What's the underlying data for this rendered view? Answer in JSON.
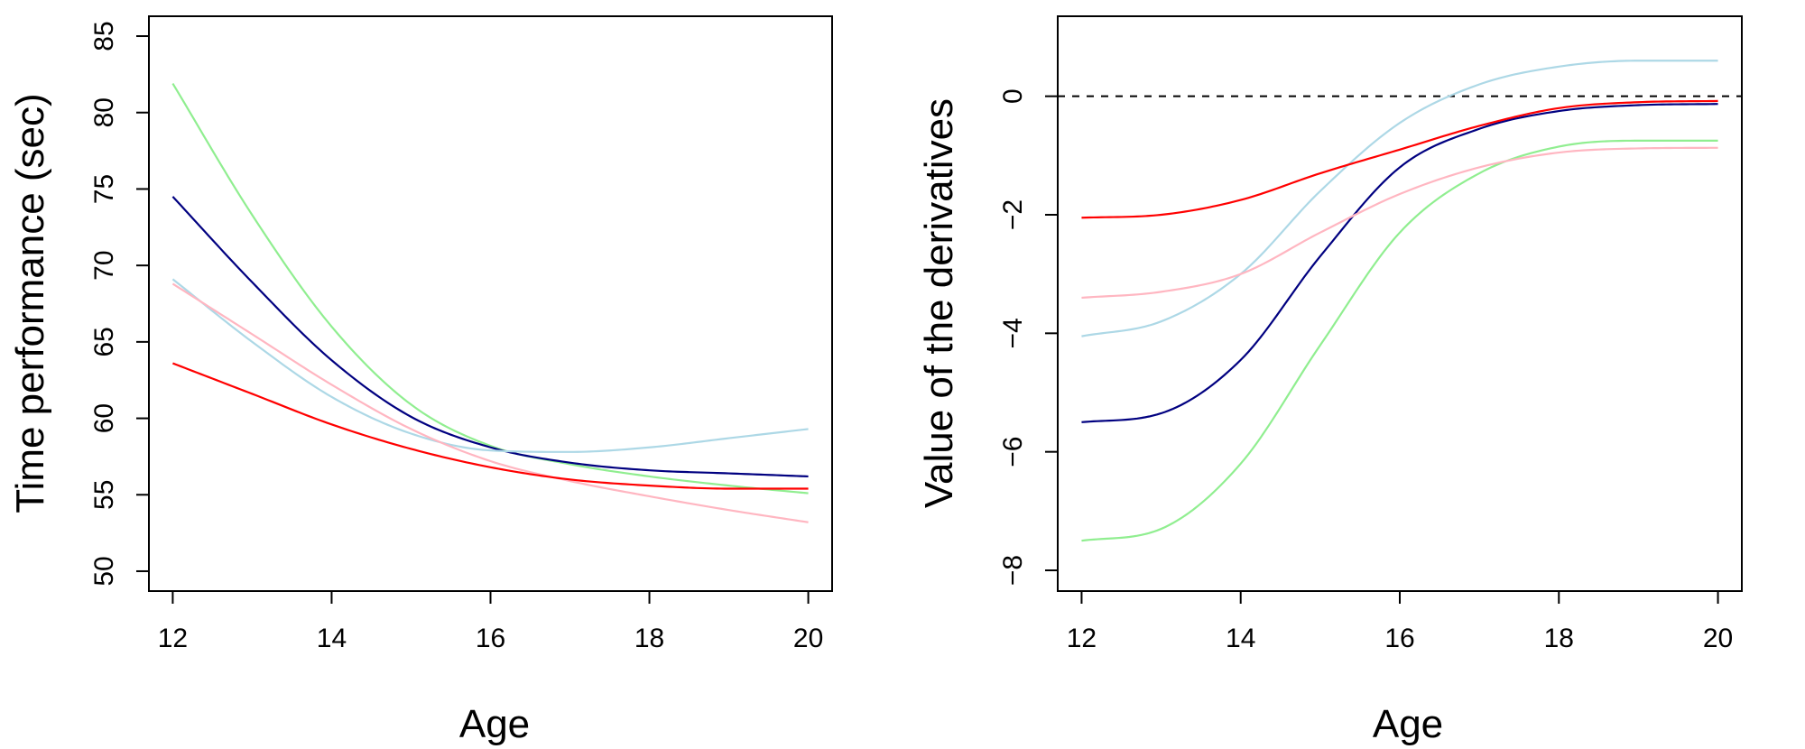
{
  "chart_data": [
    {
      "type": "line",
      "title": "",
      "xlabel": "Age",
      "ylabel": "Time performance (sec)",
      "xlim": [
        11.7,
        20.3
      ],
      "ylim": [
        48.7,
        86.3
      ],
      "xticks": [
        12,
        14,
        16,
        18,
        20
      ],
      "yticks": [
        50,
        55,
        60,
        65,
        70,
        75,
        80,
        85
      ],
      "grid": false,
      "series": [
        {
          "name": "green",
          "color": "#90EE90",
          "x": [
            12,
            13,
            14,
            15,
            16,
            17,
            18,
            19,
            20
          ],
          "y": [
            81.9,
            73.3,
            66.0,
            60.9,
            58.2,
            57.0,
            56.2,
            55.6,
            55.1
          ]
        },
        {
          "name": "navy",
          "color": "#000080",
          "x": [
            12,
            13,
            14,
            15,
            16,
            17,
            18,
            19,
            20
          ],
          "y": [
            74.5,
            68.9,
            63.8,
            60.1,
            58.1,
            57.1,
            56.6,
            56.4,
            56.2
          ]
        },
        {
          "name": "lightblue",
          "color": "#ADD8E6",
          "x": [
            12,
            13,
            14,
            15,
            16,
            17,
            18,
            19,
            20
          ],
          "y": [
            69.1,
            65.0,
            61.4,
            59.0,
            57.9,
            57.8,
            58.1,
            58.7,
            59.3
          ]
        },
        {
          "name": "pink",
          "color": "#FFB6C1",
          "x": [
            12,
            13,
            14,
            15,
            16,
            17,
            18,
            19,
            20
          ],
          "y": [
            68.8,
            65.5,
            62.2,
            59.3,
            57.2,
            55.9,
            54.9,
            54.0,
            53.2
          ]
        },
        {
          "name": "red",
          "color": "#FF0000",
          "x": [
            12,
            13,
            14,
            15,
            16,
            17,
            18,
            19,
            20
          ],
          "y": [
            63.6,
            61.6,
            59.6,
            58.0,
            56.8,
            56.0,
            55.6,
            55.4,
            55.4
          ]
        }
      ]
    },
    {
      "type": "line",
      "title": "",
      "xlabel": "Age",
      "ylabel": "Value of the derivatives",
      "xlim": [
        11.7,
        20.3
      ],
      "ylim": [
        -8.35,
        1.35
      ],
      "xticks": [
        12,
        14,
        16,
        18,
        20
      ],
      "yticks": [
        -8,
        -6,
        -4,
        -2,
        0
      ],
      "reference_line": {
        "y": 0,
        "style": "dashed"
      },
      "grid": false,
      "series": [
        {
          "name": "green",
          "color": "#90EE90",
          "x": [
            12,
            13,
            14,
            15,
            16,
            17,
            18,
            19,
            20
          ],
          "y": [
            -7.5,
            -7.3,
            -6.2,
            -4.2,
            -2.3,
            -1.3,
            -0.85,
            -0.75,
            -0.75
          ]
        },
        {
          "name": "navy",
          "color": "#000080",
          "x": [
            12,
            13,
            14,
            15,
            16,
            17,
            18,
            19,
            20
          ],
          "y": [
            -5.5,
            -5.35,
            -4.45,
            -2.7,
            -1.2,
            -0.55,
            -0.25,
            -0.15,
            -0.13
          ]
        },
        {
          "name": "lightblue",
          "color": "#ADD8E6",
          "x": [
            12,
            13,
            14,
            15,
            16,
            17,
            18,
            19,
            20
          ],
          "y": [
            -4.05,
            -3.8,
            -3.0,
            -1.6,
            -0.45,
            0.2,
            0.5,
            0.6,
            0.6
          ]
        },
        {
          "name": "pink",
          "color": "#FFB6C1",
          "x": [
            12,
            13,
            14,
            15,
            16,
            17,
            18,
            19,
            20
          ],
          "y": [
            -3.4,
            -3.3,
            -3.0,
            -2.3,
            -1.65,
            -1.2,
            -0.95,
            -0.88,
            -0.87
          ]
        },
        {
          "name": "red",
          "color": "#FF0000",
          "x": [
            12,
            13,
            14,
            15,
            16,
            17,
            18,
            19,
            20
          ],
          "y": [
            -2.05,
            -2.0,
            -1.75,
            -1.3,
            -0.9,
            -0.5,
            -0.2,
            -0.1,
            -0.08
          ]
        }
      ]
    }
  ]
}
